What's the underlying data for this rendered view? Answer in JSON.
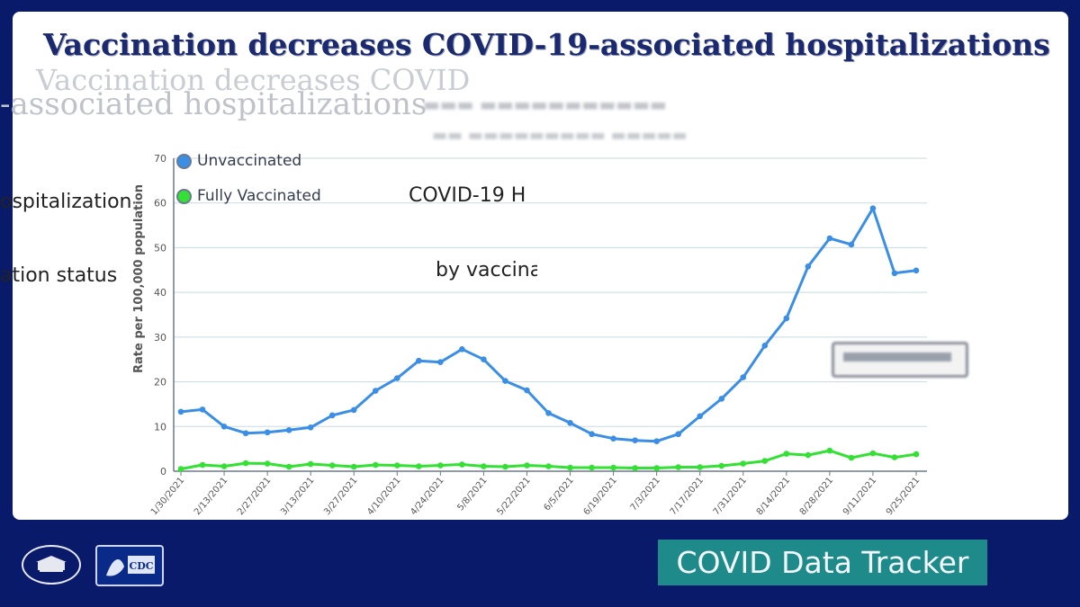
{
  "slide": {
    "title": "Vaccination decreases COVID-19-associated hospitalizations",
    "ghost_text_1": "Vaccination decreases COVID",
    "ghost_text_2": "-associated hospitalizations",
    "fragments": [
      "ospitalization",
      "ation status",
      "COVID-19 H",
      "by vaccina"
    ],
    "tracker_label": "COVID Data Tracker",
    "colors": {
      "background": "#0a1a6b",
      "title": "#1b2a6e",
      "tracker": "#1f8a8a"
    },
    "logos": [
      "white-house-seal-icon",
      "cdc-logo-icon"
    ]
  },
  "chart_data": {
    "type": "line",
    "ylabel": "Rate per 100,000 population",
    "ylim": [
      0,
      70
    ],
    "yticks": [
      0,
      10,
      20,
      30,
      40,
      50,
      60,
      70
    ],
    "grid": true,
    "legend_position": "top-left",
    "x_tick_labels": [
      "1/30/2021",
      "2/13/2021",
      "2/27/2021",
      "3/13/2021",
      "3/27/2021",
      "4/10/2021",
      "4/24/2021",
      "5/8/2021",
      "5/22/2021",
      "6/5/2021",
      "6/19/2021",
      "7/3/2021",
      "7/17/2021",
      "7/31/2021",
      "8/14/2021",
      "8/28/2021",
      "9/11/2021",
      "9/25/2021"
    ],
    "series": [
      {
        "name": "Unvaccinated",
        "color": "#3a8ee6",
        "values": [
          13.3,
          13.8,
          10.0,
          8.5,
          8.7,
          9.2,
          9.8,
          12.5,
          13.7,
          18.0,
          20.8,
          24.7,
          24.4,
          27.3,
          25.0,
          20.2,
          18.1,
          13.0,
          10.8,
          8.3,
          7.3,
          6.9,
          6.7,
          8.3,
          12.3,
          16.2,
          21.0,
          28.1,
          34.2,
          45.8,
          52.1,
          50.7,
          58.8,
          44.3,
          44.9
        ]
      },
      {
        "name": "Fully Vaccinated",
        "color": "#33e033",
        "values": [
          0.5,
          1.4,
          1.1,
          1.8,
          1.7,
          1.0,
          1.6,
          1.3,
          1.0,
          1.4,
          1.3,
          1.1,
          1.3,
          1.5,
          1.1,
          1.0,
          1.3,
          1.1,
          0.8,
          0.8,
          0.8,
          0.7,
          0.7,
          0.9,
          0.9,
          1.2,
          1.7,
          2.3,
          3.9,
          3.6,
          4.6,
          3.0,
          4.0,
          3.1,
          3.8
        ]
      }
    ]
  }
}
